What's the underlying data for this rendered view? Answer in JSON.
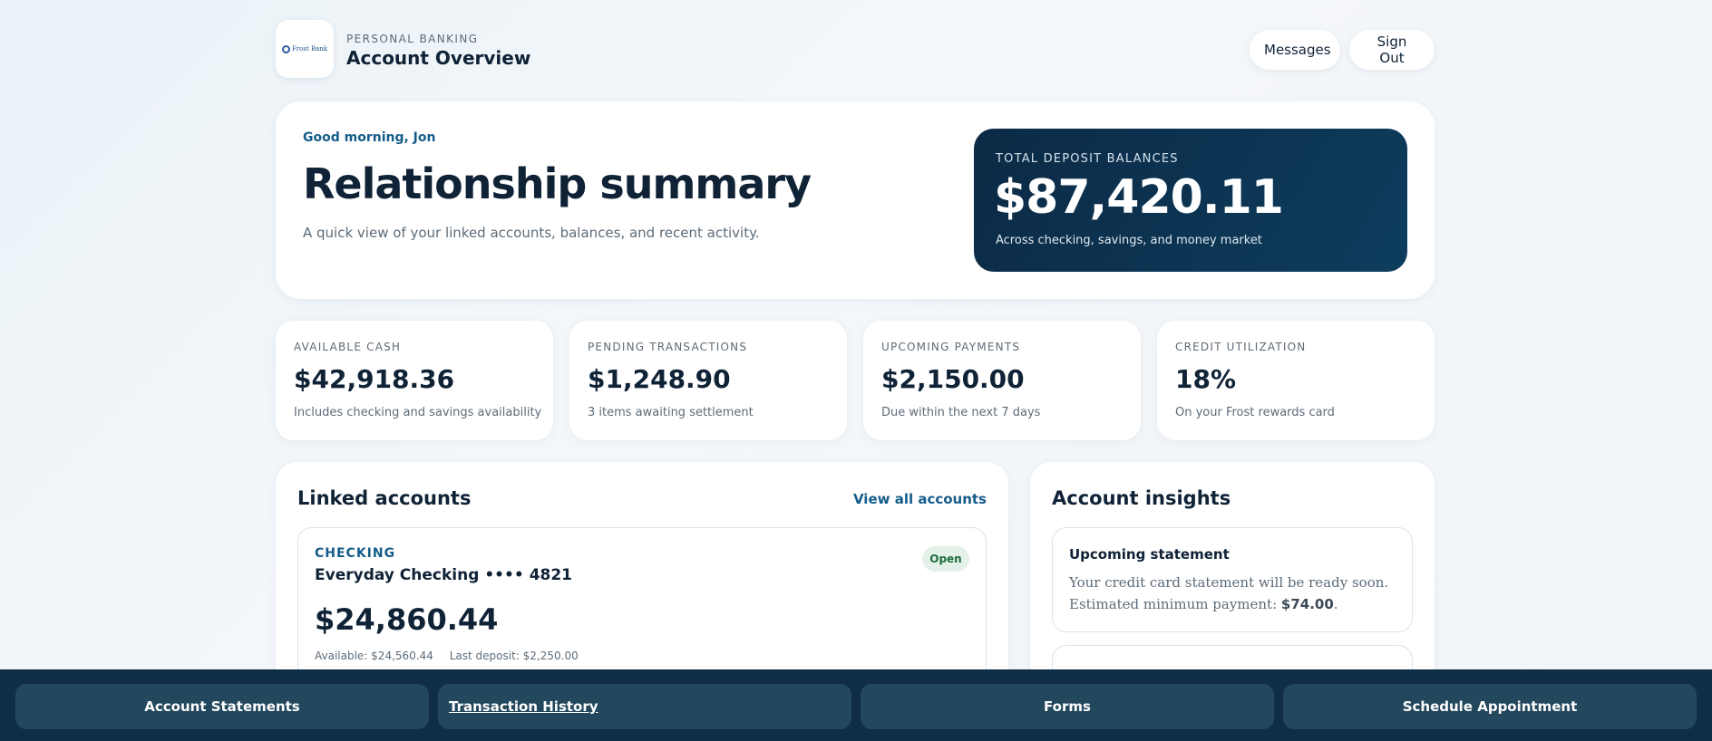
{
  "header": {
    "logo_text": "Frost Bank",
    "eyebrow": "PERSONAL BANKING",
    "title": "Account Overview",
    "messages_label": "Messages",
    "signout_label": "Sign Out"
  },
  "hero": {
    "greeting": "Good morning, Jon",
    "title": "Relationship summary",
    "subtitle": "A quick view of your linked accounts, balances, and recent activity.",
    "balance_label": "TOTAL DEPOSIT BALANCES",
    "balance_value": "$87,420.11",
    "balance_sub": "Across checking, savings, and money market"
  },
  "stats": [
    {
      "label": "AVAILABLE CASH",
      "value": "$42,918.36",
      "sub": "Includes checking and savings availability"
    },
    {
      "label": "PENDING TRANSACTIONS",
      "value": "$1,248.90",
      "sub": "3 items awaiting settlement"
    },
    {
      "label": "UPCOMING PAYMENTS",
      "value": "$2,150.00",
      "sub": "Due within the next 7 days"
    },
    {
      "label": "CREDIT UTILIZATION",
      "value": "18%",
      "sub": "On your Frost rewards card"
    }
  ],
  "linked": {
    "title": "Linked accounts",
    "view_all": "View all accounts",
    "accounts": [
      {
        "type": "CHECKING",
        "name": "Everyday Checking •••• 4821",
        "status": "Open",
        "balance": "$24,860.44",
        "available": "Available: $24,560.44",
        "last_deposit": "Last deposit: $2,250.00"
      }
    ]
  },
  "insights": {
    "title": "Account insights",
    "items": [
      {
        "title": "Upcoming statement",
        "body_prefix": "Your credit card statement will be ready soon. Estimated minimum payment: ",
        "body_strong": "$74.00",
        "body_suffix": "."
      }
    ]
  },
  "bottom_bar": {
    "statements": "Account Statements",
    "history": "Transaction History",
    "forms": "Forms",
    "appointment": "Schedule Appointment"
  }
}
